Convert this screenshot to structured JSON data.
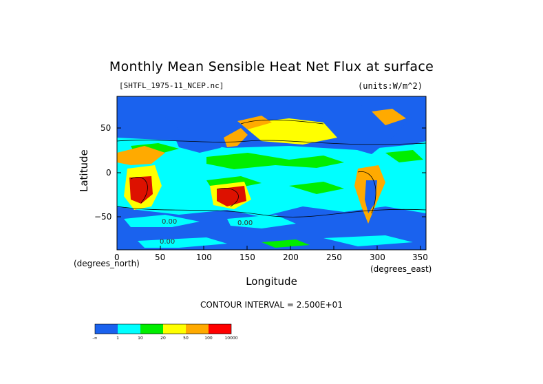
{
  "title": "Monthly Mean Sensible Heat Net Flux at surface",
  "file_label": "[SHTFL_1975-11_NCEP.nc]",
  "units_label": "(units:W/m^2)",
  "ylabel": "Latitude",
  "xlabel": "Longitude",
  "x_units_north": "(degrees_north)",
  "x_units_east": "(degrees_east)",
  "contour_interval": "CONTOUR INTERVAL = 2.500E+01",
  "y_ticks": [
    "50",
    "0",
    "−50"
  ],
  "x_ticks": [
    "0",
    "50",
    "100",
    "150",
    "200",
    "250",
    "300",
    "350"
  ],
  "contour_labels": [
    "0.00",
    "0.00",
    "0.00"
  ],
  "colorbar": {
    "labels": [
      "-∞",
      "1",
      "10",
      "20",
      "50",
      "100",
      "10000"
    ],
    "colors": [
      "#1a62ee",
      "#00ffff",
      "#00ee00",
      "#ffff00",
      "#ffaa00",
      "#ff0000"
    ]
  },
  "map_colors": {
    "ocean_low": "#1a62ee",
    "cyan": "#00ffff",
    "green": "#00ee00",
    "yellow": "#ffff00",
    "orange": "#ffaa00",
    "red": "#dd1100"
  }
}
